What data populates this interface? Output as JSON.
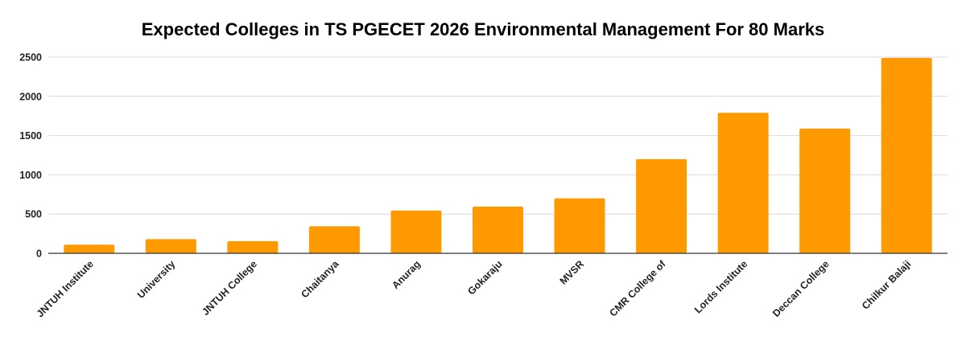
{
  "chart_data": {
    "type": "bar",
    "title": "Expected Colleges in TS PGECET 2026 Environmental Management For 80 Marks",
    "xlabel": "",
    "ylabel": "",
    "categories": [
      "JNTUH Institute",
      "University",
      "JNTUH College",
      "Chaitanya",
      "Anurag",
      "Gokaraju",
      "MVSR",
      "CMR College of",
      "Lords Institute",
      "Deccan College",
      "Chilkur Balaji"
    ],
    "values": [
      110,
      180,
      155,
      345,
      545,
      595,
      700,
      1200,
      1790,
      1590,
      2490
    ],
    "ylim": [
      0,
      2500
    ],
    "yticks": [
      0,
      500,
      1000,
      1500,
      2000,
      2500
    ],
    "bar_color": "#ff9900",
    "grid": true,
    "legend": "none"
  }
}
